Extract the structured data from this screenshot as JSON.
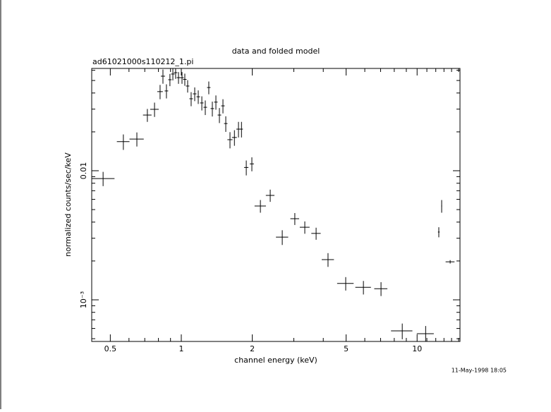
{
  "chart_data": {
    "type": "errorbar",
    "title": "data and folded model",
    "subtitle": "ad61021000s110212_1.pi",
    "x_label": "channel energy (keV)",
    "y_label": "normalized counts/sec/keV",
    "annotation": "11-May-1998 18:05",
    "x_log": true,
    "y_log": true,
    "color": "#000000",
    "xlim": [
      0.417,
      15.2
    ],
    "ylim": [
      0.000476,
      0.062
    ],
    "xticks": [
      0.5,
      1,
      2,
      5,
      10
    ],
    "xticks_minor": [
      0.6,
      0.7,
      0.8,
      0.9,
      3,
      4,
      6,
      7,
      8,
      9,
      11,
      12,
      13,
      14,
      15
    ],
    "yticks": [
      0.01,
      {
        "value": 0.001,
        "label": "10⁻³"
      }
    ],
    "yticks_minor": [
      0.0005,
      0.0006,
      0.0007,
      0.0008,
      0.0009,
      0.002,
      0.003,
      0.004,
      0.005,
      0.006,
      0.007,
      0.008,
      0.009,
      0.02,
      0.03,
      0.04,
      0.05,
      0.06
    ],
    "x": [
      0.466,
      0.568,
      0.648,
      0.718,
      0.77,
      0.813,
      0.836,
      0.865,
      0.895,
      0.921,
      0.946,
      0.973,
      1.007,
      1.035,
      1.064,
      1.101,
      1.14,
      1.18,
      1.222,
      1.264,
      1.308,
      1.354,
      1.402,
      1.451,
      1.502,
      1.544,
      1.609,
      1.68,
      1.748,
      1.8,
      1.886,
      1.992,
      2.165,
      2.383,
      2.68,
      3.03,
      3.34,
      3.73,
      4.19,
      4.98,
      5.92,
      7.03,
      8.65,
      10.87,
      12.36,
      12.71,
      13.81
    ],
    "xerr": [
      0.055,
      0.035,
      0.045,
      0.03,
      0.032,
      0.022,
      0.017,
      0.015,
      0.015,
      0.016,
      0.016,
      0.017,
      0.017,
      0.018,
      0.018,
      0.019,
      0.02,
      0.02,
      0.021,
      0.022,
      0.022,
      0.023,
      0.024,
      0.025,
      0.026,
      0.026,
      0.04,
      0.04,
      0.036,
      0.025,
      0.04,
      0.04,
      0.12,
      0.1,
      0.16,
      0.13,
      0.16,
      0.17,
      0.25,
      0.4,
      0.45,
      0.45,
      0.9,
      0.9,
      0.1,
      0.05,
      0.6
    ],
    "y": [
      0.0087,
      0.0168,
      0.0176,
      0.027,
      0.0299,
      0.041,
      0.054,
      0.0415,
      0.0507,
      0.0561,
      0.0575,
      0.0526,
      0.0526,
      0.051,
      0.0453,
      0.0361,
      0.0394,
      0.0374,
      0.0335,
      0.031,
      0.0441,
      0.0303,
      0.034,
      0.027,
      0.0318,
      0.0232,
      0.0174,
      0.0181,
      0.021,
      0.021,
      0.0106,
      0.0113,
      0.00533,
      0.00644,
      0.00306,
      0.00425,
      0.00365,
      0.00327,
      0.00205,
      0.00134,
      0.00125,
      0.00122,
      0.000575,
      0.000547,
      0.00335,
      0.00533,
      0.00197
    ],
    "yerr": [
      0.0011,
      0.0023,
      0.0022,
      0.0031,
      0.0038,
      0.0052,
      0.0068,
      0.0052,
      0.0055,
      0.006,
      0.006,
      0.0055,
      0.0055,
      0.0055,
      0.005,
      0.0045,
      0.0048,
      0.0045,
      0.0042,
      0.004,
      0.005,
      0.004,
      0.0043,
      0.0036,
      0.004,
      0.0032,
      0.0025,
      0.0025,
      0.0029,
      0.0029,
      0.0014,
      0.0014,
      0.0006,
      0.0007,
      0.0004,
      0.00045,
      0.0004,
      0.00035,
      0.00025,
      0.00016,
      0.00015,
      0.00015,
      8e-05,
      8e-05,
      0.0003,
      0.0006,
      6e-05
    ]
  }
}
